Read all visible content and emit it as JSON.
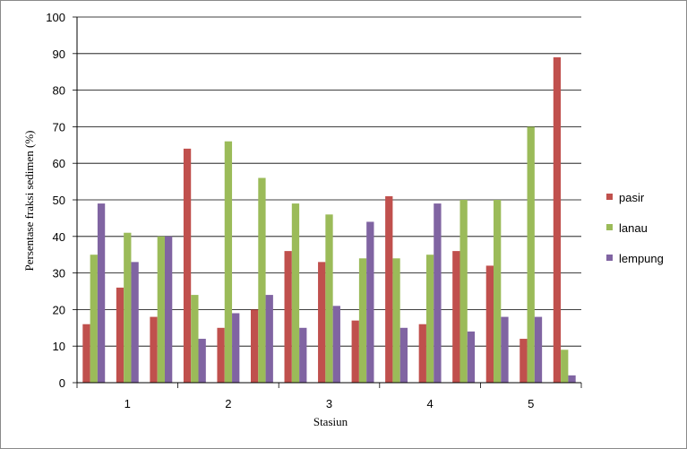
{
  "chart_data": {
    "type": "bar",
    "title": "",
    "xlabel": "Stasiun",
    "ylabel": "Persentase fraksi sedimen (%)",
    "ylim": [
      0,
      100
    ],
    "y_ticks": [
      "0",
      "10",
      "20",
      "30",
      "40",
      "50",
      "60",
      "70",
      "80",
      "90",
      "100"
    ],
    "x_tick_labels": [
      "1",
      "2",
      "3",
      "4",
      "5"
    ],
    "groups": 15,
    "grid": true,
    "legend_position": "right",
    "series": [
      {
        "name": "pasir",
        "color": "#c0504d",
        "values": [
          16,
          26,
          18,
          64,
          15,
          20,
          36,
          33,
          17,
          51,
          16,
          36,
          32,
          12,
          89
        ]
      },
      {
        "name": "lanau",
        "color": "#9bbb59",
        "values": [
          35,
          41,
          40,
          24,
          66,
          56,
          49,
          46,
          34,
          34,
          35,
          50,
          50,
          70,
          9
        ]
      },
      {
        "name": "lempung",
        "color": "#8064a2",
        "values": [
          49,
          33,
          40,
          12,
          19,
          24,
          15,
          21,
          44,
          15,
          49,
          14,
          18,
          18,
          2
        ]
      }
    ]
  }
}
